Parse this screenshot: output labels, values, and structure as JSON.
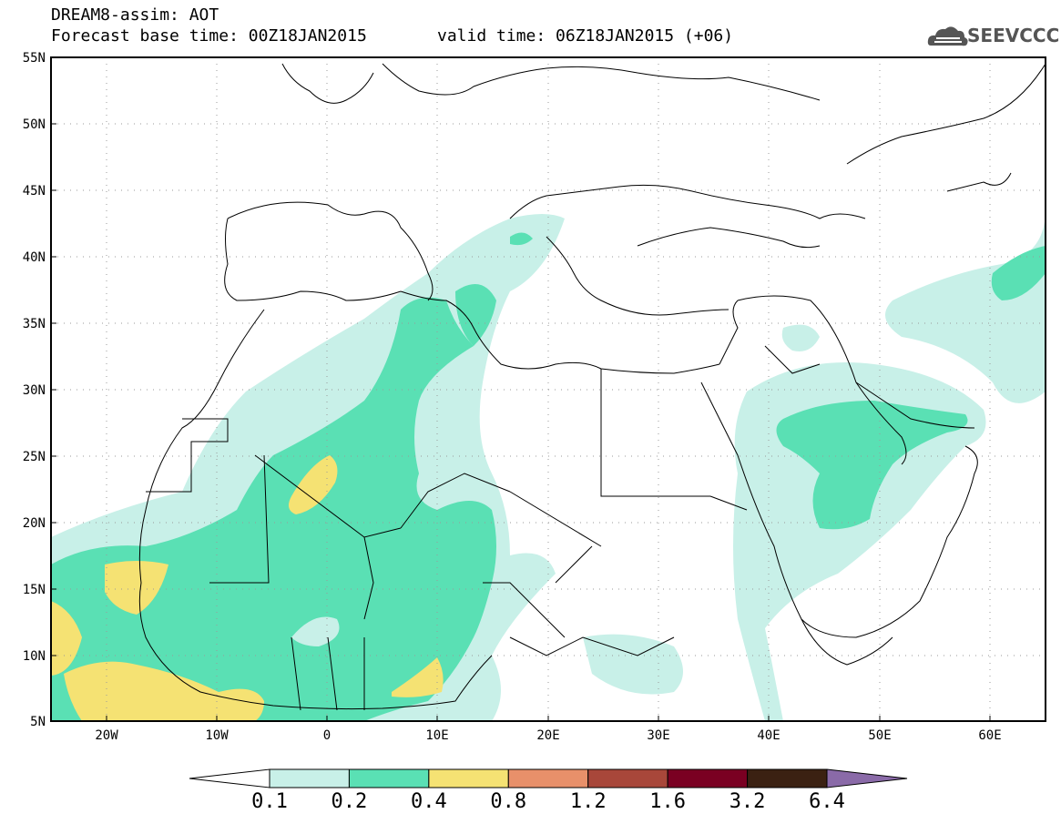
{
  "title": {
    "line1": "DREAM8-assim: AOT",
    "line2": "Forecast base time: 00Z18JAN2015",
    "valid": "valid time: 06Z18JAN2015 (+06)"
  },
  "logo": {
    "text": "SEEVCCC",
    "icon": "cloud-icon"
  },
  "map": {
    "lon_range": [
      -25,
      65
    ],
    "lat_range": [
      5,
      55
    ],
    "lat_ticks": [
      "55N",
      "50N",
      "45N",
      "40N",
      "35N",
      "30N",
      "25N",
      "20N",
      "15N",
      "10N",
      "5N"
    ],
    "lon_ticks": [
      "20W",
      "10W",
      "0",
      "10E",
      "20E",
      "30E",
      "40E",
      "50E",
      "60E"
    ],
    "grid": "dotted"
  },
  "colorbar": {
    "labels": [
      "0.1",
      "0.2",
      "0.4",
      "0.8",
      "1.2",
      "1.6",
      "3.2",
      "6.4"
    ],
    "colors": [
      "#ffffff",
      "#c8f0e8",
      "#5ae0b4",
      "#f5e273",
      "#e8906a",
      "#a8473a",
      "#7a0022",
      "#3b2112",
      "#8a6aa8"
    ]
  }
}
